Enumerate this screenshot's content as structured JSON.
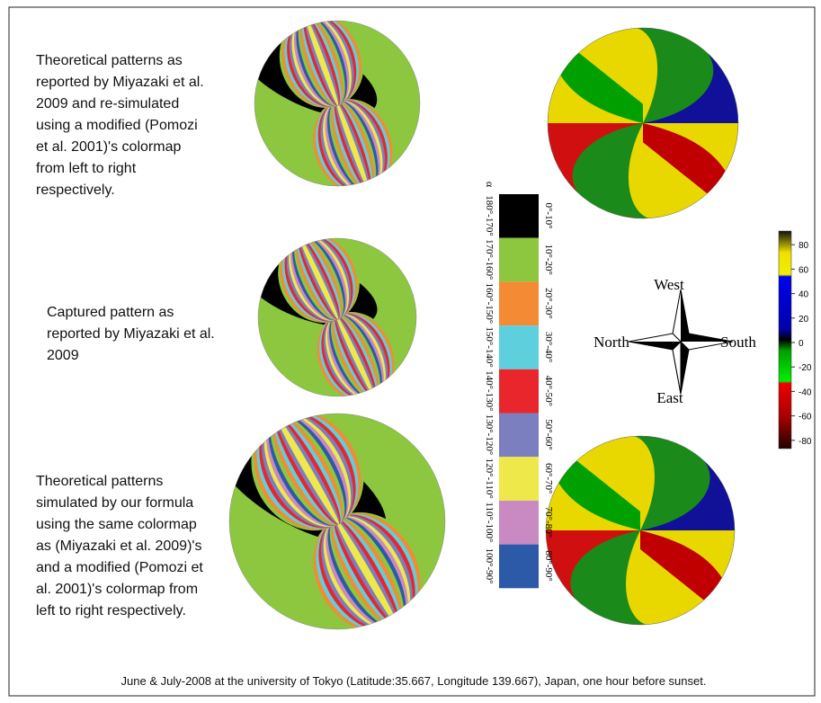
{
  "captions": [
    [
      "Theoretical patterns as",
      "reported by Miyazaki et al.",
      "2009 and re-simulated",
      "using  a modified (Pomozi",
      "et al. 2001)'s colormap",
      "from left to right",
      "respectively."
    ],
    [
      "Captured pattern as",
      "reported by Miyazaki et al.",
      "2009"
    ],
    [
      "Theoretical patterns",
      "simulated by our formula",
      "using the same colormap",
      "as (Miyazaki et al. 2009)'s",
      "and a modified (Pomozi et",
      "al. 2001)'s colormap from",
      "left to right respectively."
    ]
  ],
  "colormap": {
    "symbol": "α",
    "entries": [
      {
        "label": "0°-10°",
        "label2": "180°-170°",
        "color": "#000000"
      },
      {
        "label": "10°-20°",
        "label2": "170°-160°",
        "color": "#8dc63f"
      },
      {
        "label": "20°-30°",
        "label2": "160°-150°",
        "color": "#f58a34"
      },
      {
        "label": "30°-40°",
        "label2": "150°-140°",
        "color": "#5ecfdc"
      },
      {
        "label": "40°-50°",
        "label2": "140°-130°",
        "color": "#e8262c"
      },
      {
        "label": "50°-60°",
        "label2": "130°-120°",
        "color": "#7b7fc0"
      },
      {
        "label": "60°-70°",
        "label2": "120°-110°",
        "color": "#eee84a"
      },
      {
        "label": "70°-80°",
        "label2": "110°-100°",
        "color": "#c88ac0"
      },
      {
        "label": "80°-90°",
        "label2": "100°-90°",
        "color": "#2c5aa8"
      }
    ]
  },
  "colorbar": {
    "ticks": [
      80,
      60,
      40,
      20,
      0,
      -20,
      -40,
      -60,
      -80
    ]
  },
  "compass": {
    "west": "West",
    "north": "North",
    "south": "South",
    "east": "East"
  },
  "footer": "June & July-2008  at the university of Tokyo (Latitude:35.667, Longitude 139.667),  Japan, one hour before sunset."
}
